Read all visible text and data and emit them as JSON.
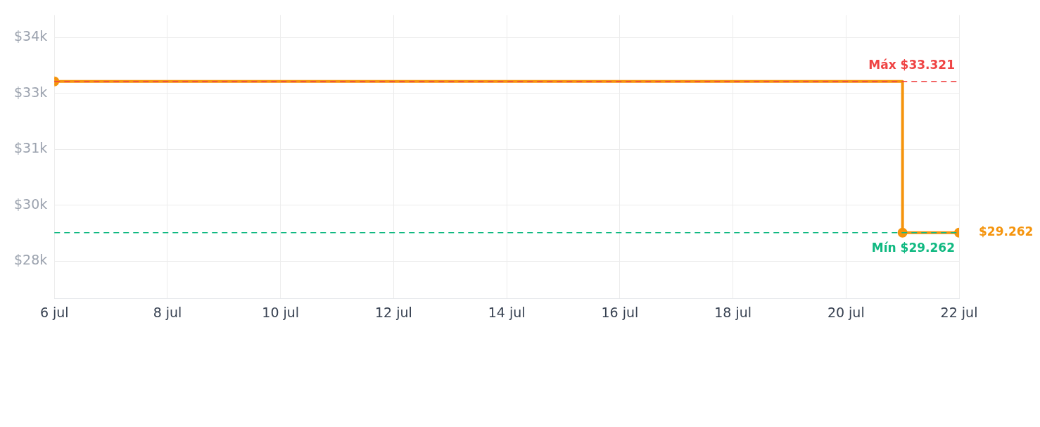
{
  "chart_data": {
    "type": "step",
    "x": [
      "--07-06",
      "--07-21",
      "--07-22"
    ],
    "series": [
      {
        "color": "#f5940c",
        "values": [
          33.321,
          29.262,
          29.262
        ]
      }
    ],
    "xlim": [
      "--07-06",
      "--07-22"
    ],
    "xticks": [
      {
        "value": "--07-06",
        "label": "6 jul"
      },
      {
        "value": "--07-08",
        "label": "8 jul"
      },
      {
        "value": "--07-10",
        "label": "10 jul"
      },
      {
        "value": "--07-12",
        "label": "12 jul"
      },
      {
        "value": "--07-14",
        "label": "14 jul"
      },
      {
        "value": "--07-16",
        "label": "16 jul"
      },
      {
        "value": "--07-18",
        "label": "18 jul"
      },
      {
        "value": "--07-20",
        "label": "20 jul"
      },
      {
        "value": "--07-22",
        "label": "22 jul"
      }
    ],
    "ylim": [
      27.5,
      35.1
    ],
    "yticks": [
      {
        "value": 28.5,
        "label": "$28k"
      },
      {
        "value": 30,
        "label": "$30k"
      },
      {
        "value": 31.5,
        "label": "$31k"
      },
      {
        "value": 33,
        "label": "$33k"
      },
      {
        "value": 34.5,
        "label": "$34k"
      }
    ],
    "ref_lines": [
      {
        "axis": "y",
        "value": 33.321,
        "label": "Máx $33.321",
        "color": "#ef4444",
        "line_style": "dashed"
      },
      {
        "axis": "y",
        "value": 29.262,
        "label": "Mín $29.262",
        "color": "#10b981",
        "line_style": "dashed"
      }
    ],
    "annotations": [
      {
        "text": "$29.262",
        "x": "--07-22",
        "y": 29.262
      }
    ],
    "grid": true,
    "legend": false,
    "marker": "circle",
    "line_style": "solid"
  }
}
